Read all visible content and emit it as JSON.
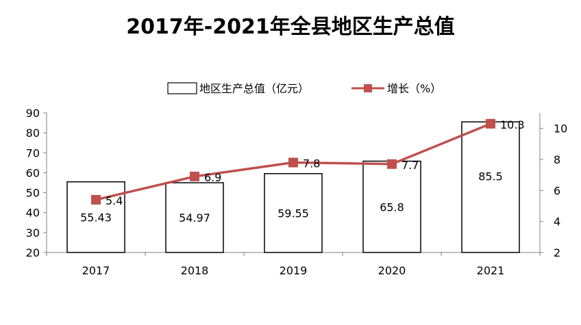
{
  "chart_data": {
    "type": "bar",
    "title": "2017年-2021年全县地区生产总值",
    "categories": [
      "2017",
      "2018",
      "2019",
      "2020",
      "2021"
    ],
    "series": [
      {
        "name": "地区生产总值（亿元）",
        "type": "bar",
        "axis": "left",
        "values": [
          55.43,
          54.97,
          59.55,
          65.8,
          85.5
        ]
      },
      {
        "name": "增长（%）",
        "type": "line",
        "axis": "right",
        "values": [
          5.4,
          6.9,
          7.8,
          7.7,
          10.3
        ]
      }
    ],
    "ylim_left": [
      20,
      90
    ],
    "yticks_left": [
      "20",
      "30",
      "40",
      "50",
      "60",
      "70",
      "80",
      "90"
    ],
    "ylim_right": [
      2,
      11
    ],
    "yticks_right": [
      "2",
      "4",
      "6",
      "8",
      "10"
    ],
    "bar_labels": [
      "55.43",
      "54.97",
      "59.55",
      "65.8",
      "85.5"
    ],
    "line_labels": [
      "5.4",
      "6.9",
      "7.8",
      "7.7",
      "10.3"
    ],
    "line_color": "#c0504d",
    "bar_fill": "#ffffff",
    "bar_stroke": "#000000",
    "legend_position": "top-right",
    "grid": false
  }
}
